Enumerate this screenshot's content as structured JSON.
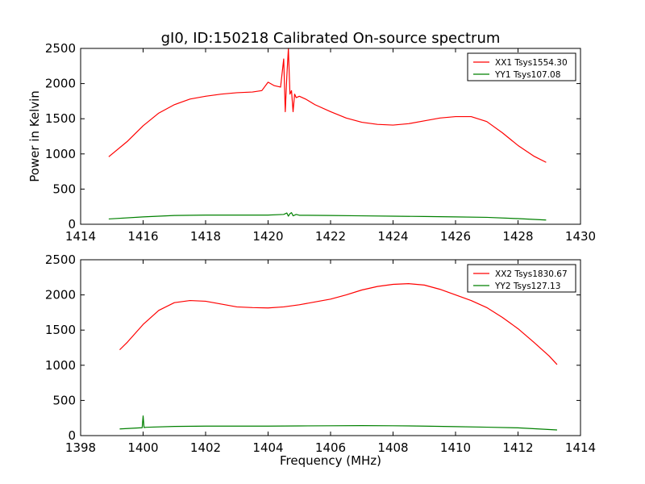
{
  "chart_data": [
    {
      "type": "line",
      "title": "gI0, ID:150218 Calibrated On-source spectrum",
      "xlabel": "",
      "ylabel": "Power in Kelvin",
      "xlim": [
        1414,
        1430
      ],
      "ylim": [
        0,
        2500
      ],
      "xticks": [
        1414,
        1416,
        1418,
        1420,
        1422,
        1424,
        1426,
        1428,
        1430
      ],
      "yticks": [
        0,
        500,
        1000,
        1500,
        2000,
        2500
      ],
      "grid": false,
      "legend_position": "top-right",
      "series": [
        {
          "name": "XX1 Tsys1554.30",
          "color": "#ff0000",
          "x": [
            1414.9,
            1415.5,
            1416.0,
            1416.5,
            1417.0,
            1417.5,
            1418.0,
            1418.5,
            1419.0,
            1419.5,
            1419.8,
            1420.0,
            1420.2,
            1420.4,
            1420.5,
            1420.55,
            1420.6,
            1420.65,
            1420.7,
            1420.75,
            1420.8,
            1420.85,
            1420.9,
            1421.0,
            1421.2,
            1421.5,
            1422.0,
            1422.5,
            1423.0,
            1423.5,
            1424.0,
            1424.5,
            1425.0,
            1425.5,
            1426.0,
            1426.5,
            1427.0,
            1427.5,
            1428.0,
            1428.5,
            1428.9
          ],
          "y": [
            960,
            1180,
            1400,
            1580,
            1700,
            1780,
            1820,
            1850,
            1870,
            1880,
            1900,
            2020,
            1970,
            1950,
            2350,
            1600,
            2100,
            2500,
            1850,
            1900,
            1600,
            1850,
            1800,
            1820,
            1780,
            1700,
            1600,
            1510,
            1450,
            1420,
            1410,
            1430,
            1470,
            1510,
            1530,
            1530,
            1460,
            1300,
            1120,
            970,
            880
          ]
        },
        {
          "name": "YY1 Tsys107.08",
          "color": "#008000",
          "x": [
            1414.9,
            1416.0,
            1417.0,
            1418.0,
            1419.0,
            1420.0,
            1420.5,
            1420.6,
            1420.65,
            1420.7,
            1420.75,
            1420.8,
            1420.9,
            1421.0,
            1422.0,
            1423.0,
            1424.0,
            1425.0,
            1426.0,
            1427.0,
            1428.0,
            1428.9
          ],
          "y": [
            75,
            105,
            125,
            130,
            130,
            130,
            140,
            160,
            115,
            150,
            165,
            120,
            140,
            128,
            125,
            120,
            115,
            110,
            105,
            98,
            80,
            60
          ]
        }
      ]
    },
    {
      "type": "line",
      "title": "",
      "xlabel": "Frequency (MHz)",
      "ylabel": "",
      "xlim": [
        1398,
        1414
      ],
      "ylim": [
        0,
        2500
      ],
      "xticks": [
        1398,
        1400,
        1402,
        1404,
        1406,
        1408,
        1410,
        1412,
        1414
      ],
      "yticks": [
        0,
        500,
        1000,
        1500,
        2000,
        2500
      ],
      "grid": false,
      "legend_position": "top-right",
      "series": [
        {
          "name": "XX2 Tsys1830.67",
          "color": "#ff0000",
          "x": [
            1399.25,
            1399.5,
            1400.0,
            1400.5,
            1401.0,
            1401.5,
            1402.0,
            1402.5,
            1403.0,
            1403.5,
            1404.0,
            1404.5,
            1405.0,
            1405.5,
            1406.0,
            1406.5,
            1407.0,
            1407.5,
            1408.0,
            1408.5,
            1409.0,
            1409.5,
            1410.0,
            1410.5,
            1411.0,
            1411.5,
            1412.0,
            1412.5,
            1413.0,
            1413.25
          ],
          "y": [
            1220,
            1330,
            1580,
            1780,
            1890,
            1920,
            1910,
            1870,
            1830,
            1820,
            1815,
            1830,
            1860,
            1900,
            1940,
            2000,
            2070,
            2120,
            2150,
            2160,
            2140,
            2080,
            2000,
            1920,
            1820,
            1680,
            1520,
            1330,
            1130,
            1010
          ]
        },
        {
          "name": "YY2 Tsys127.13",
          "color": "#008000",
          "x": [
            1399.25,
            1399.9,
            1399.97,
            1400.0,
            1400.03,
            1400.1,
            1401.0,
            1402.0,
            1403.0,
            1404.0,
            1405.0,
            1406.0,
            1407.0,
            1408.0,
            1409.0,
            1410.0,
            1411.0,
            1412.0,
            1413.25
          ],
          "y": [
            95,
            110,
            112,
            280,
            115,
            118,
            130,
            135,
            135,
            135,
            138,
            140,
            142,
            140,
            135,
            128,
            120,
            110,
            80
          ]
        }
      ]
    }
  ]
}
